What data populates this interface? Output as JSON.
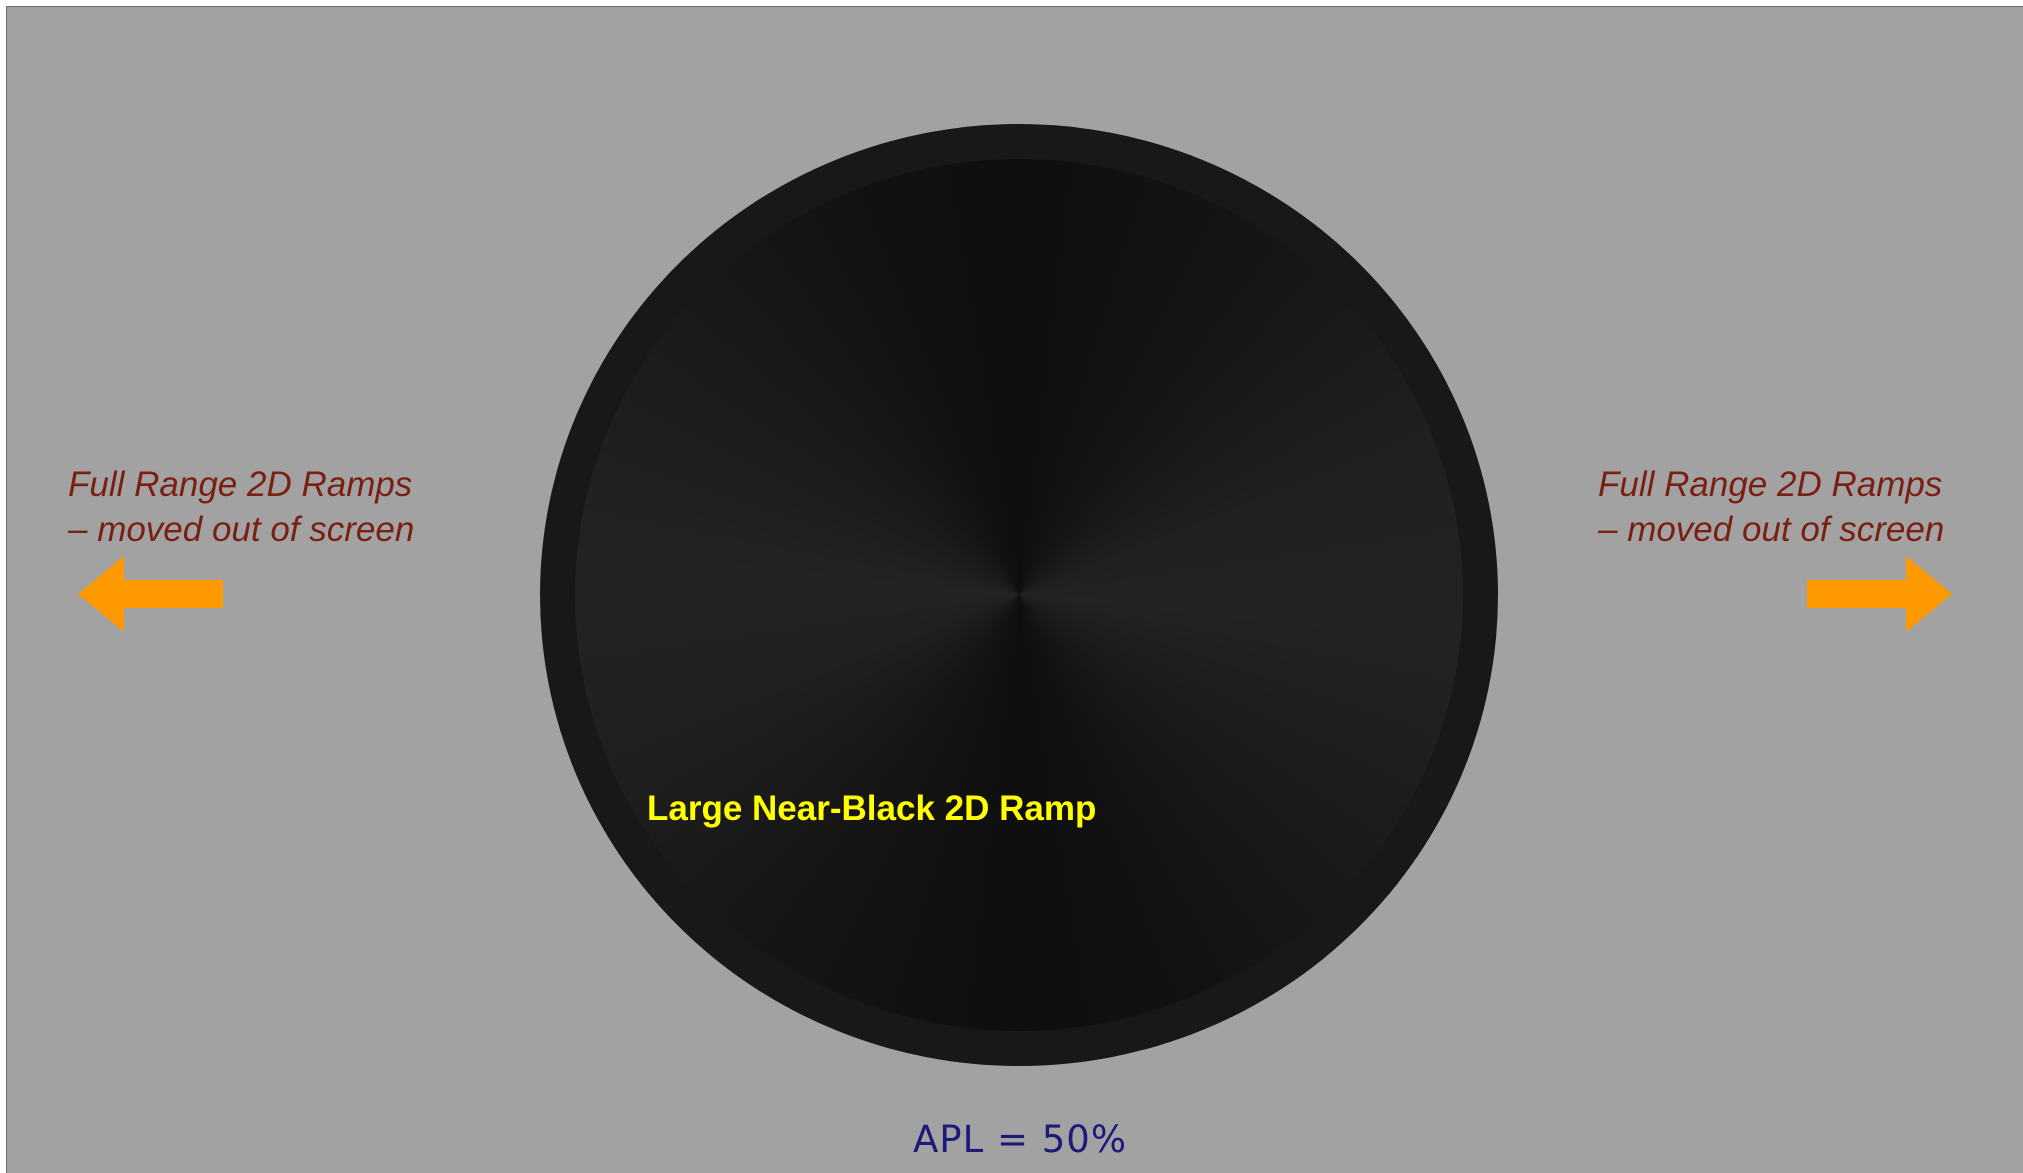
{
  "left_caption": {
    "line1": "Full Range 2D Ramps",
    "line2": "– moved out of screen",
    "arrow_icon": "arrow-left-icon"
  },
  "right_caption": {
    "line1": "Full Range 2D Ramps",
    "line2": "– moved out of screen",
    "arrow_icon": "arrow-right-icon"
  },
  "ramp": {
    "label": "Large Near-Black 2D Ramp"
  },
  "apl_label": "APL = 50%",
  "colors": {
    "background": "#a2a2a2",
    "caption_text": "#7a1f12",
    "arrow": "#ff9900",
    "ramp_label": "#ffff00",
    "apl_text": "#1c1b7a"
  }
}
